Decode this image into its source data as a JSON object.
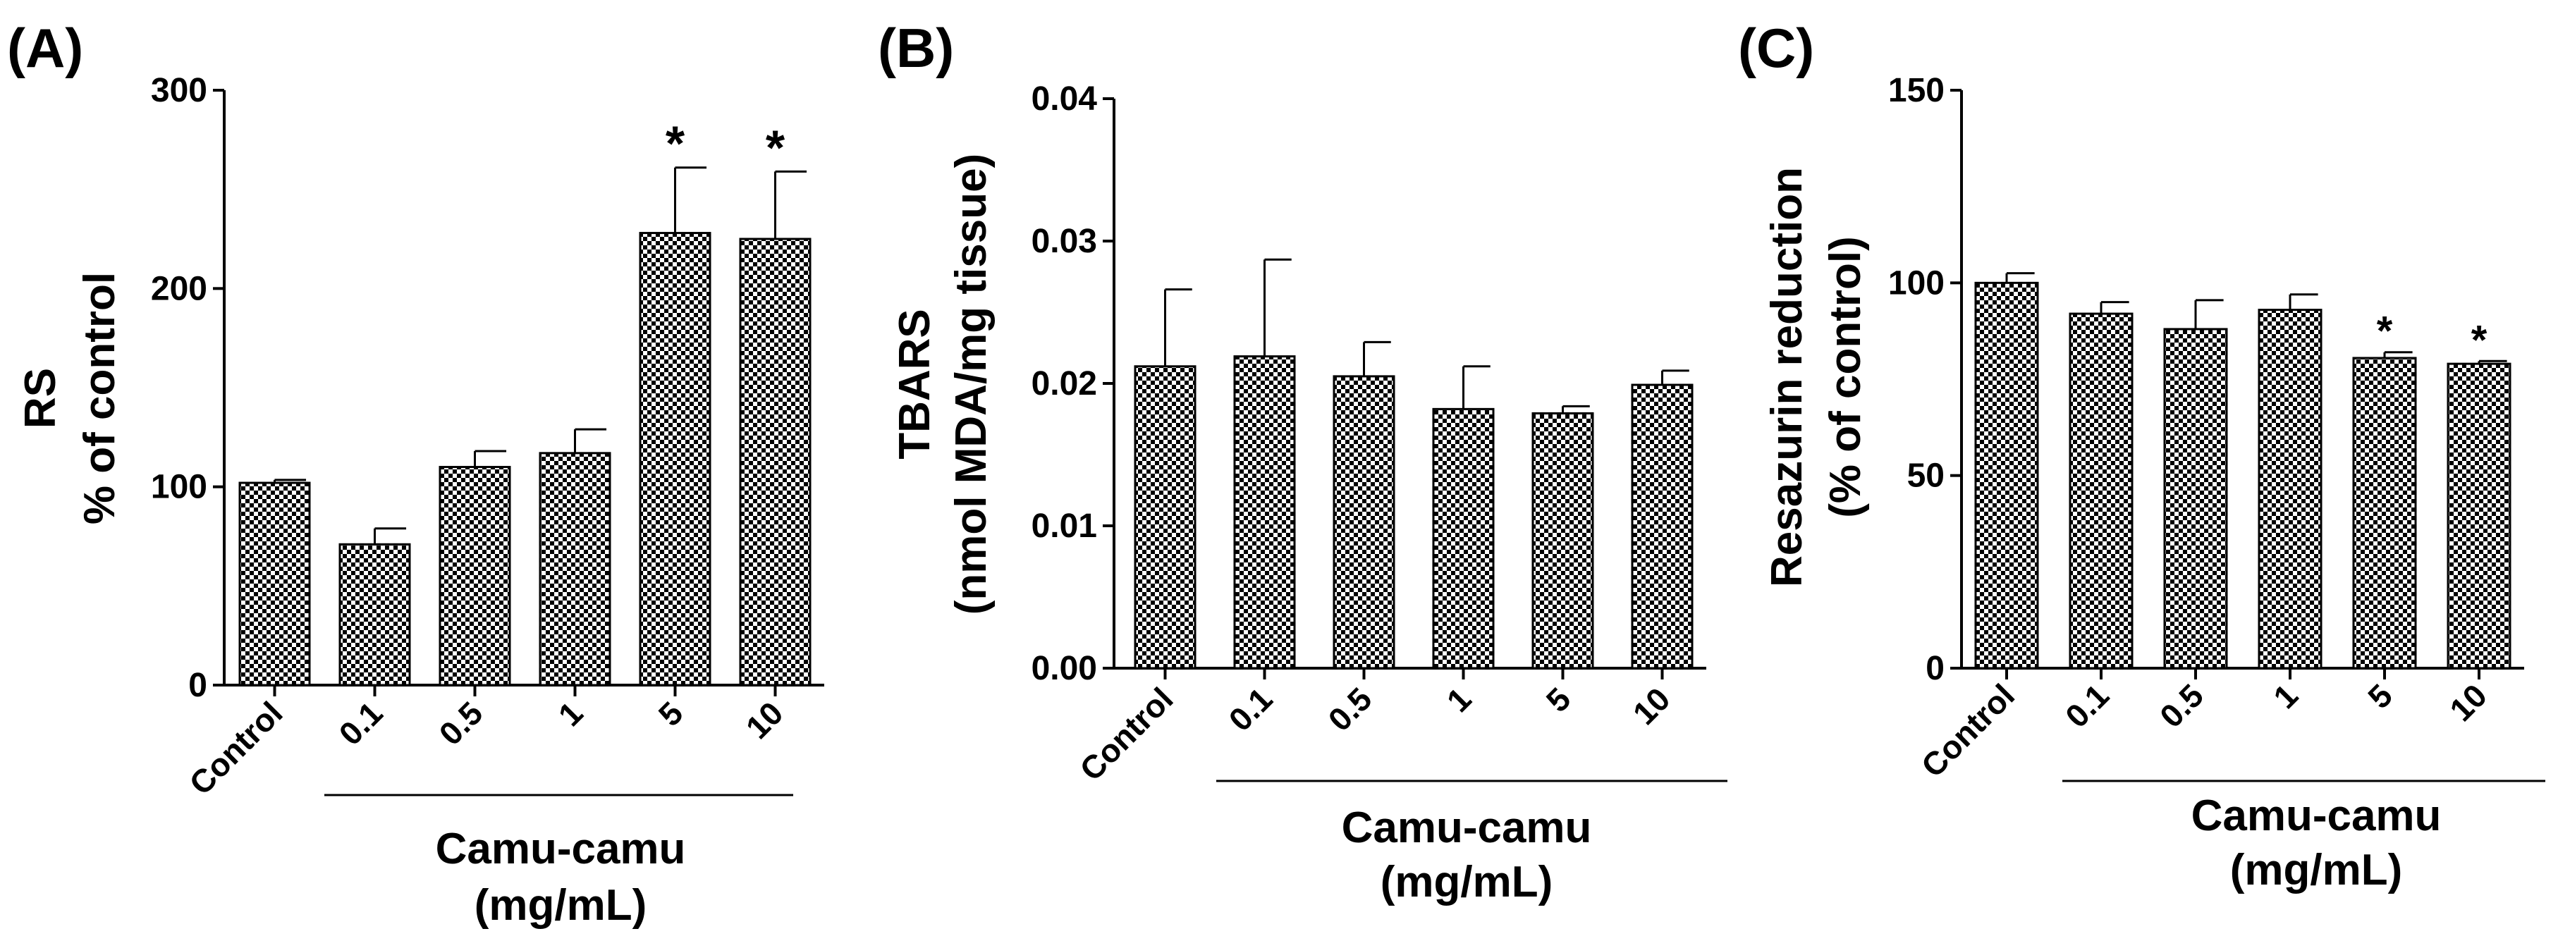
{
  "colors": {
    "bar_fill": "checkerboard-black-white",
    "ink": "#000000",
    "background": "#ffffff"
  },
  "chart_data": [
    {
      "type": "bar",
      "panel_label": "(A)",
      "ylabel_lines": [
        "RS",
        "% of control"
      ],
      "ylim": [
        0,
        300
      ],
      "yticks": [
        "0",
        "100",
        "200",
        "300"
      ],
      "categories": [
        "Control",
        "0.1",
        "0.5",
        "1",
        "5",
        "10"
      ],
      "values": [
        102,
        71,
        110,
        117,
        228,
        225
      ],
      "errors": [
        1.5,
        8,
        8,
        12,
        33,
        34
      ],
      "significance": [
        "",
        "",
        "",
        "",
        "*",
        "*"
      ],
      "group_label_lines": [
        "Camu-camu",
        "(mg/mL)"
      ]
    },
    {
      "type": "bar",
      "panel_label": "(B)",
      "ylabel_lines": [
        "TBARS",
        "(nmol MDA/mg tissue)"
      ],
      "ylim": [
        0,
        0.04
      ],
      "yticks": [
        "0.00",
        "0.01",
        "0.02",
        "0.03",
        "0.04"
      ],
      "categories": [
        "Control",
        "0.1",
        "0.5",
        "1",
        "5",
        "10"
      ],
      "values": [
        0.0212,
        0.0219,
        0.0205,
        0.0182,
        0.0179,
        0.0199
      ],
      "errors": [
        0.0054,
        0.0068,
        0.0024,
        0.003,
        0.0005,
        0.001
      ],
      "significance": [
        "",
        "",
        "",
        "",
        "",
        ""
      ],
      "group_label_lines": [
        "Camu-camu",
        "(mg/mL)"
      ]
    },
    {
      "type": "bar",
      "panel_label": "(C)",
      "ylabel_lines": [
        "Resazurin reduction",
        "(% of control)"
      ],
      "ylim": [
        0,
        150
      ],
      "yticks": [
        "0",
        "50",
        "100",
        "150"
      ],
      "categories": [
        "Control",
        "0.1",
        "0.5",
        "1",
        "5",
        "10"
      ],
      "values": [
        100,
        92,
        88,
        93,
        80.5,
        79
      ],
      "errors": [
        2.5,
        3,
        7.5,
        4,
        1.5,
        0.7
      ],
      "significance": [
        "",
        "",
        "",
        "",
        "*",
        "*"
      ],
      "group_label_lines": [
        "Camu-camu",
        "(mg/mL)"
      ]
    }
  ]
}
